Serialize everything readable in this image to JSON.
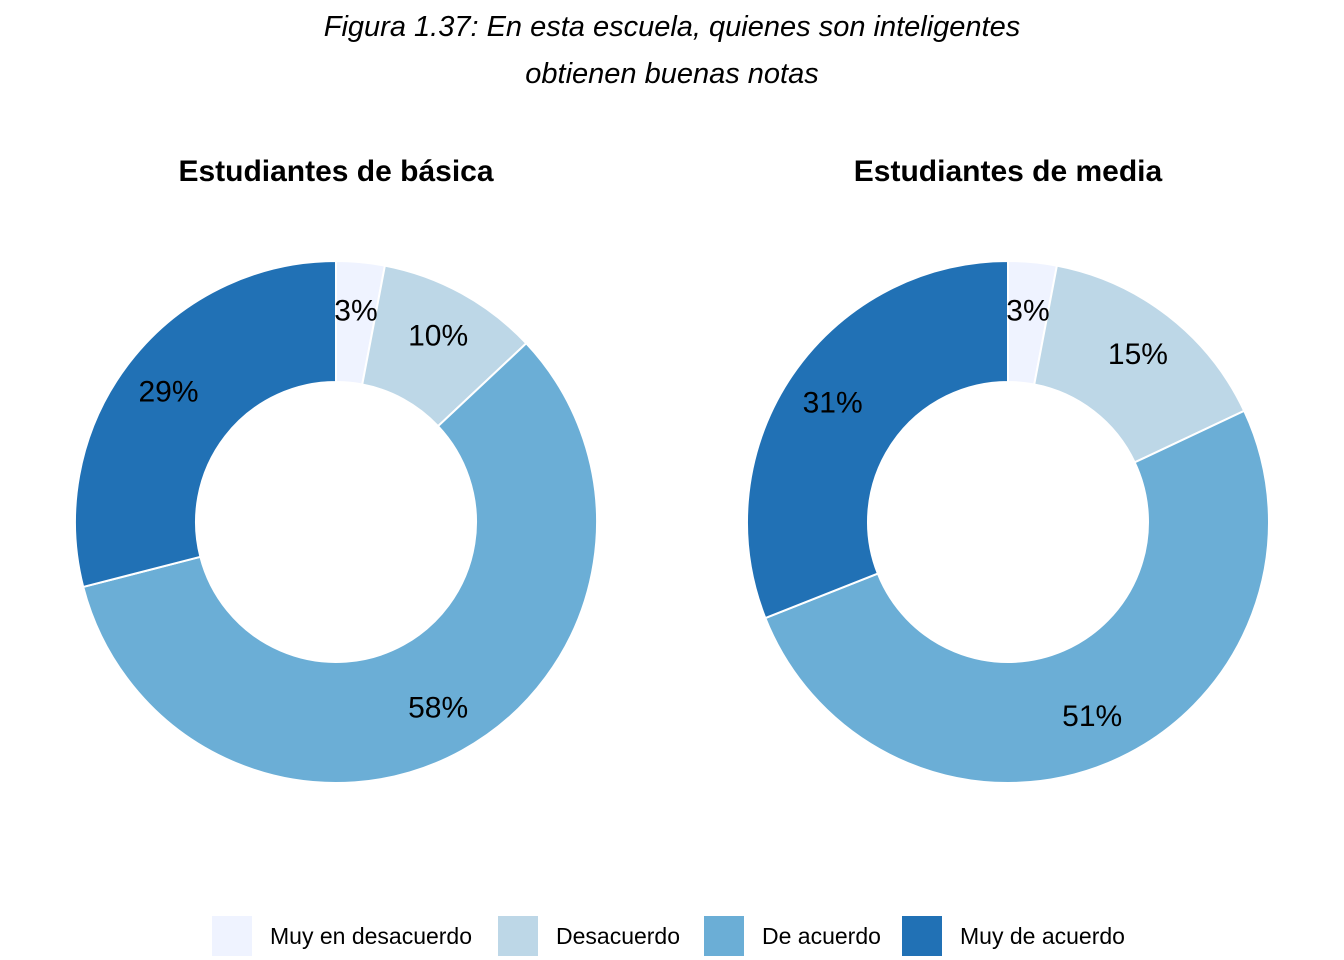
{
  "figure": {
    "title_line1": "Figura 1.37:  En esta escuela, quienes son inteligentes",
    "title_line2": "obtienen buenas notas"
  },
  "legend": [
    {
      "label": "Muy en desacuerdo",
      "color": "#eff3ff"
    },
    {
      "label": "Desacuerdo",
      "color": "#bdd7e7"
    },
    {
      "label": "De acuerdo",
      "color": "#6baed6"
    },
    {
      "label": "Muy de acuerdo",
      "color": "#2171b5"
    }
  ],
  "chart_data": [
    {
      "type": "pie",
      "variant": "donut",
      "title": "Estudiantes de básica",
      "categories": [
        "Muy en desacuerdo",
        "Desacuerdo",
        "De acuerdo",
        "Muy de acuerdo"
      ],
      "values": [
        3,
        10,
        58,
        29
      ],
      "labels": [
        "3%",
        "10%",
        "58%",
        "29%"
      ]
    },
    {
      "type": "pie",
      "variant": "donut",
      "title": "Estudiantes de media",
      "categories": [
        "Muy en desacuerdo",
        "Desacuerdo",
        "De acuerdo",
        "Muy de acuerdo"
      ],
      "values": [
        3,
        15,
        51,
        31
      ],
      "labels": [
        "3%",
        "15%",
        "51%",
        "31%"
      ]
    }
  ]
}
